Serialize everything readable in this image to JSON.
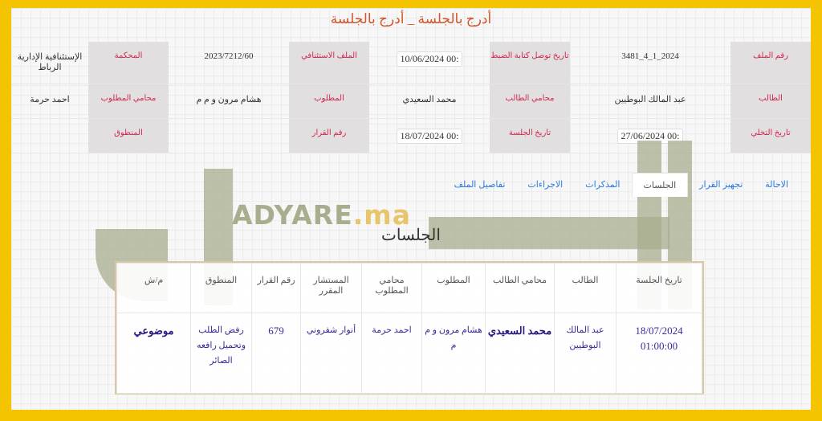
{
  "title": "أدرج بالجلسة _ أدرج بالجلسة",
  "watermark": {
    "logo_text": "ADYARE",
    "logo_suffix": ".ma"
  },
  "info": {
    "file_number_label": "رقم الملف",
    "file_number": "3481_4_1_2024",
    "receipt_date_label": "تاريخ توصل كتابة الضبط",
    "receipt_date": "10/06/2024 00:",
    "appeal_file_label": "الملف الاستئنافي",
    "appeal_file": "2023/7212/60",
    "court_label": "المحكمة",
    "court": "الإستئنافية الإدارية الرباط",
    "applicant_label": "الطالب",
    "applicant": "عبد المالك البوطيين",
    "applicant_lawyer_label": "محامي الطالب",
    "applicant_lawyer": "محمد السعيدي",
    "defendant_label": "المطلوب",
    "defendant": "هشام مرون و م م",
    "defendant_lawyer_label": "محامي المطلوب",
    "defendant_lawyer": "احمد حرمة",
    "withdrawal_date_label": "تاريخ التخلي",
    "withdrawal_date": "27/06/2024 00:",
    "session_date_label": "تاريخ الجلسة",
    "session_date": "18/07/2024 00:",
    "decision_number_label": "رقم القرار",
    "decision_number": "",
    "ruling_label": "المنطوق",
    "ruling": ""
  },
  "tabs": [
    {
      "label": "تفاصيل الملف"
    },
    {
      "label": "الاجراءات"
    },
    {
      "label": "المذكرات"
    },
    {
      "label": "الجلسات",
      "active": true
    },
    {
      "label": "تجهيز القرار"
    },
    {
      "label": "الاحالة"
    }
  ],
  "section_heading": "الجلسات",
  "sessions": {
    "headers": [
      "تاريخ الجلسة",
      "الطالب",
      "محامي الطالب",
      "المطلوب",
      "محامي المطلوب",
      "المستشار المقرر",
      "رقم القرار",
      "المنطوق",
      "م/ش"
    ],
    "rows": [
      [
        "18/07/2024 01:00:00",
        "عبد المالك البوطيين",
        "محمد السعيدي",
        "هشام مرون و م م",
        "احمد حرمة",
        "أنوار شقروني",
        "679",
        "رفض الطلب وتحميل رافعه الصائر",
        "موضوعي"
      ]
    ]
  },
  "colors": {
    "border": "#f5c400",
    "label_text": "#d1274d",
    "title": "#d2542a",
    "link": "#2a7ae2"
  }
}
